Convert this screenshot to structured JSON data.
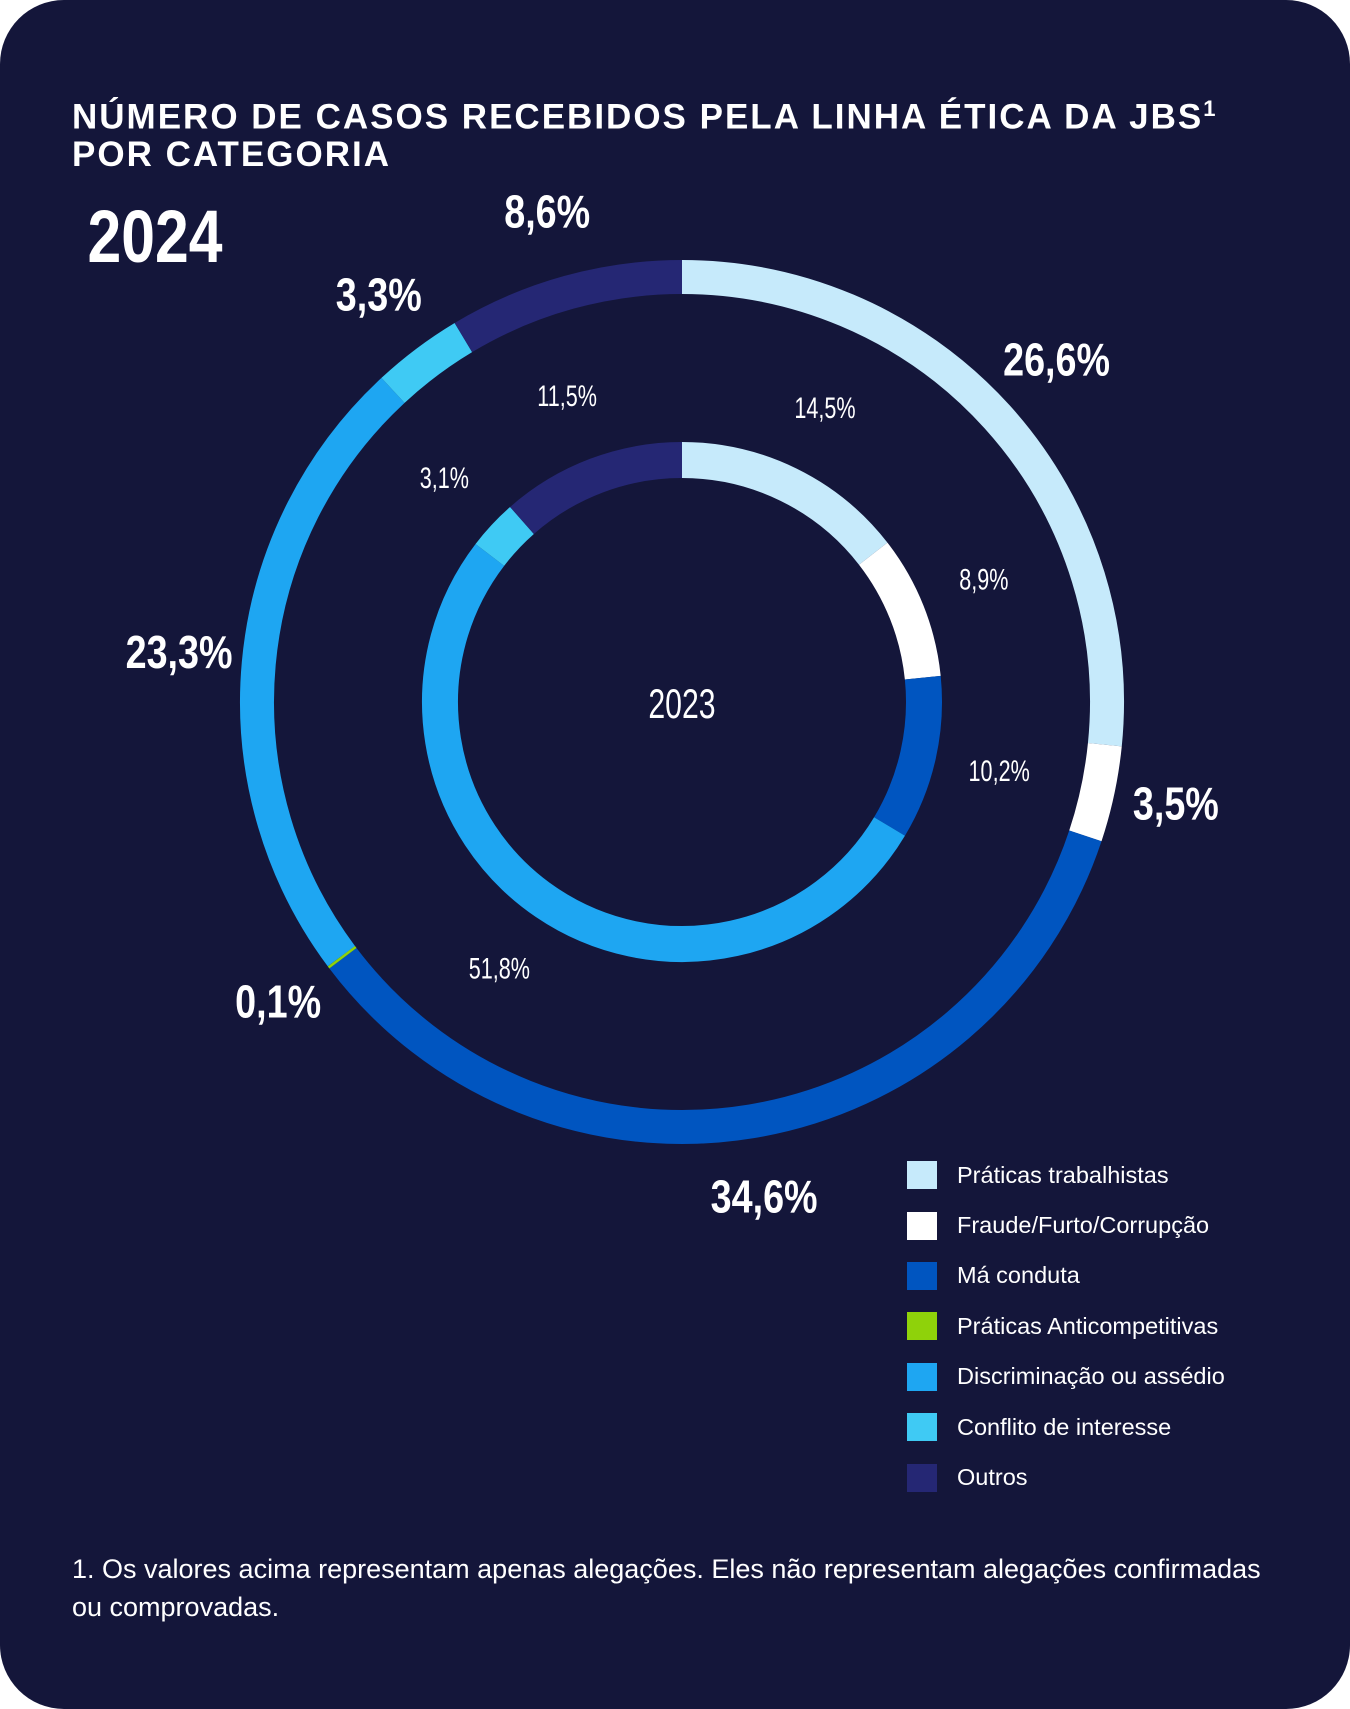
{
  "title": {
    "line1": "NÚMERO DE CASOS RECEBIDOS PELA LINHA ÉTICA DA JBS",
    "superscript": "1",
    "line2": "POR CATEGORIA"
  },
  "chart_data": {
    "type": "donut",
    "outer_year": "2024",
    "inner_year": "2023",
    "categories": [
      "Práticas trabalhistas",
      "Fraude/Furto/Corrupção",
      "Má conduta",
      "Práticas Anticompetitivas",
      "Discriminação ou assédio",
      "Conflito de interesse",
      "Outros"
    ],
    "colors": [
      "#c6eafb",
      "#ffffff",
      "#0055c0",
      "#8fd20a",
      "#1ea6f2",
      "#3fcaf4",
      "#252774"
    ],
    "series": [
      {
        "name": "2024",
        "values": [
          26.6,
          3.5,
          34.6,
          0.1,
          23.3,
          3.3,
          8.6
        ],
        "labels": [
          "26,6%",
          "3,5%",
          "34,6%",
          "0,1%",
          "23,3%",
          "3,3%",
          "8,6%"
        ]
      },
      {
        "name": "2023",
        "values": [
          14.5,
          8.9,
          10.2,
          0,
          51.8,
          3.1,
          11.5
        ],
        "labels": [
          "14,5%",
          "8,9%",
          "10,2%",
          "",
          "51,8%",
          "3,1%",
          "11,5%"
        ]
      }
    ],
    "legend_position": "bottom-right"
  },
  "footnote": "1. Os valores acima representam apenas alegações. Eles não representam alegações confirmadas ou comprovadas.",
  "background_color": "#14163a"
}
